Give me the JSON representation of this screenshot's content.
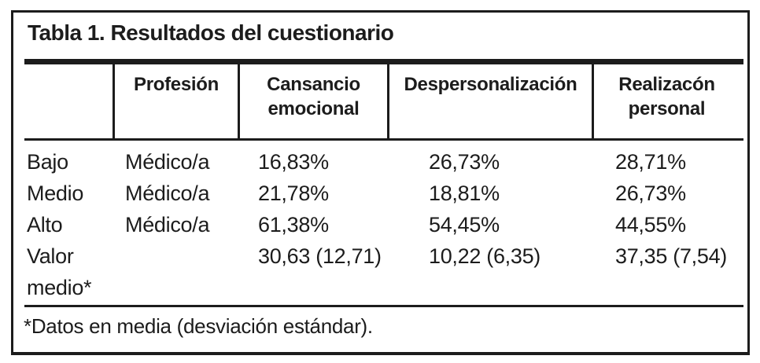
{
  "table": {
    "title": "Tabla 1. Resultados del cuestionario",
    "columns": [
      "",
      "Profesión",
      "Cansancio emocional",
      "Despersonalización",
      "Realizacón personal"
    ],
    "rows": [
      {
        "label": "Bajo",
        "profesion": "Médico/a",
        "cansancio_emocional": "16,83%",
        "despersonalizacion": "26,73%",
        "realizacion_personal": "28,71%"
      },
      {
        "label": "Medio",
        "profesion": "Médico/a",
        "cansancio_emocional": "21,78%",
        "despersonalizacion": "18,81%",
        "realizacion_personal": "26,73%"
      },
      {
        "label": "Alto",
        "profesion": "Médico/a",
        "cansancio_emocional": "61,38%",
        "despersonalizacion": "54,45%",
        "realizacion_personal": "44,55%"
      },
      {
        "label": "Valor medio*",
        "profesion": "",
        "cansancio_emocional": "30,63 (12,71)",
        "despersonalizacion": "10,22 (6,35)",
        "realizacion_personal": "37,35 (7,54)"
      }
    ],
    "footnote": "*Datos en media (desviación estándar).",
    "colors": {
      "text": "#1c1c1c",
      "border": "#1c1c1c",
      "background": "#ffffff"
    }
  }
}
